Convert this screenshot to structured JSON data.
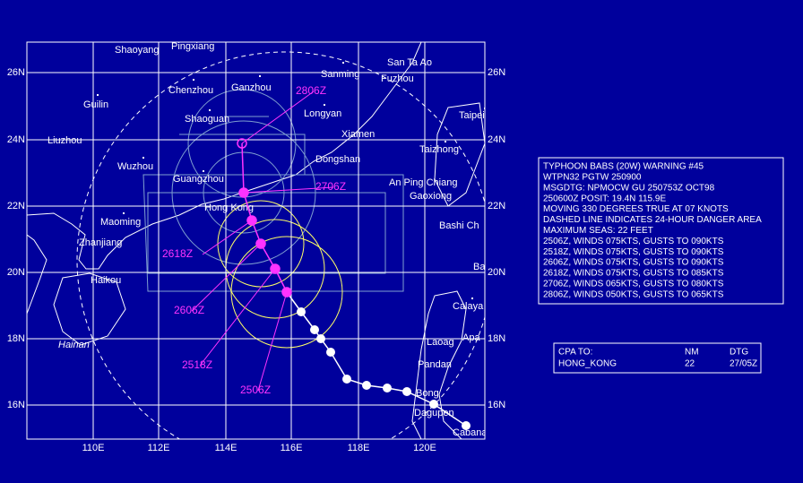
{
  "map": {
    "lat_labels": [
      "26N",
      "24N",
      "22N",
      "20N",
      "18N",
      "16N"
    ],
    "lon_labels": [
      "110E",
      "112E",
      "114E",
      "116E",
      "118E",
      "120E"
    ],
    "places": [
      "Shaoyang",
      "Pingxiang",
      "Chenzhou",
      "Ganzhou",
      "Sanming",
      "San Ta Ao",
      "Fuzhou",
      "Guilin",
      "Shaoguan",
      "Longyan",
      "Taipei",
      "Liuzhou",
      "Xiamen",
      "Taizhong",
      "Wuzhou",
      "Dongshan",
      "Guangzhou",
      "An Ping Chiang",
      "Hong Kong",
      "Gaoxiong",
      "Maoming",
      "Bashi Ch",
      "Zhanjiang",
      "Ba",
      "Haikou",
      "Calaya",
      "Hainan",
      "Apa",
      "Laoag",
      "Pandan",
      "Bong",
      "Dagupen",
      "Cabanatuan"
    ],
    "fix_labels": [
      "2806Z",
      "2706Z",
      "2618Z",
      "2606Z",
      "2518Z",
      "2506Z"
    ]
  },
  "warning": {
    "lines": [
      "TYPHOON BABS (20W) WARNING #45",
      "WTPN32 PGTW 250900",
      "MSGDTG: NPMOCW GU 250753Z OCT98",
      "250600Z POSIT: 19.4N 115.9E",
      "MOVING 330 DEGREES TRUE AT 07 KNOTS",
      "DASHED LINE INDICATES 24-HOUR DANGER AREA",
      "MAXIMUM SEAS: 22 FEET",
      "2506Z, WINDS 075KTS, GUSTS TO 090KTS",
      "2518Z, WINDS 075KTS, GUSTS TO 090KTS",
      "2606Z, WINDS 075KTS, GUSTS TO 090KTS",
      "2618Z, WINDS 075KTS, GUSTS TO 085KTS",
      "2706Z, WINDS 065KTS, GUSTS TO 080KTS",
      "2806Z, WINDS 050KTS, GUSTS TO 065KTS"
    ]
  },
  "cpa": {
    "header": [
      "CPA TO:",
      "NM",
      "DTG"
    ],
    "row": [
      "HONG_KONG",
      22,
      "27/05Z"
    ]
  }
}
